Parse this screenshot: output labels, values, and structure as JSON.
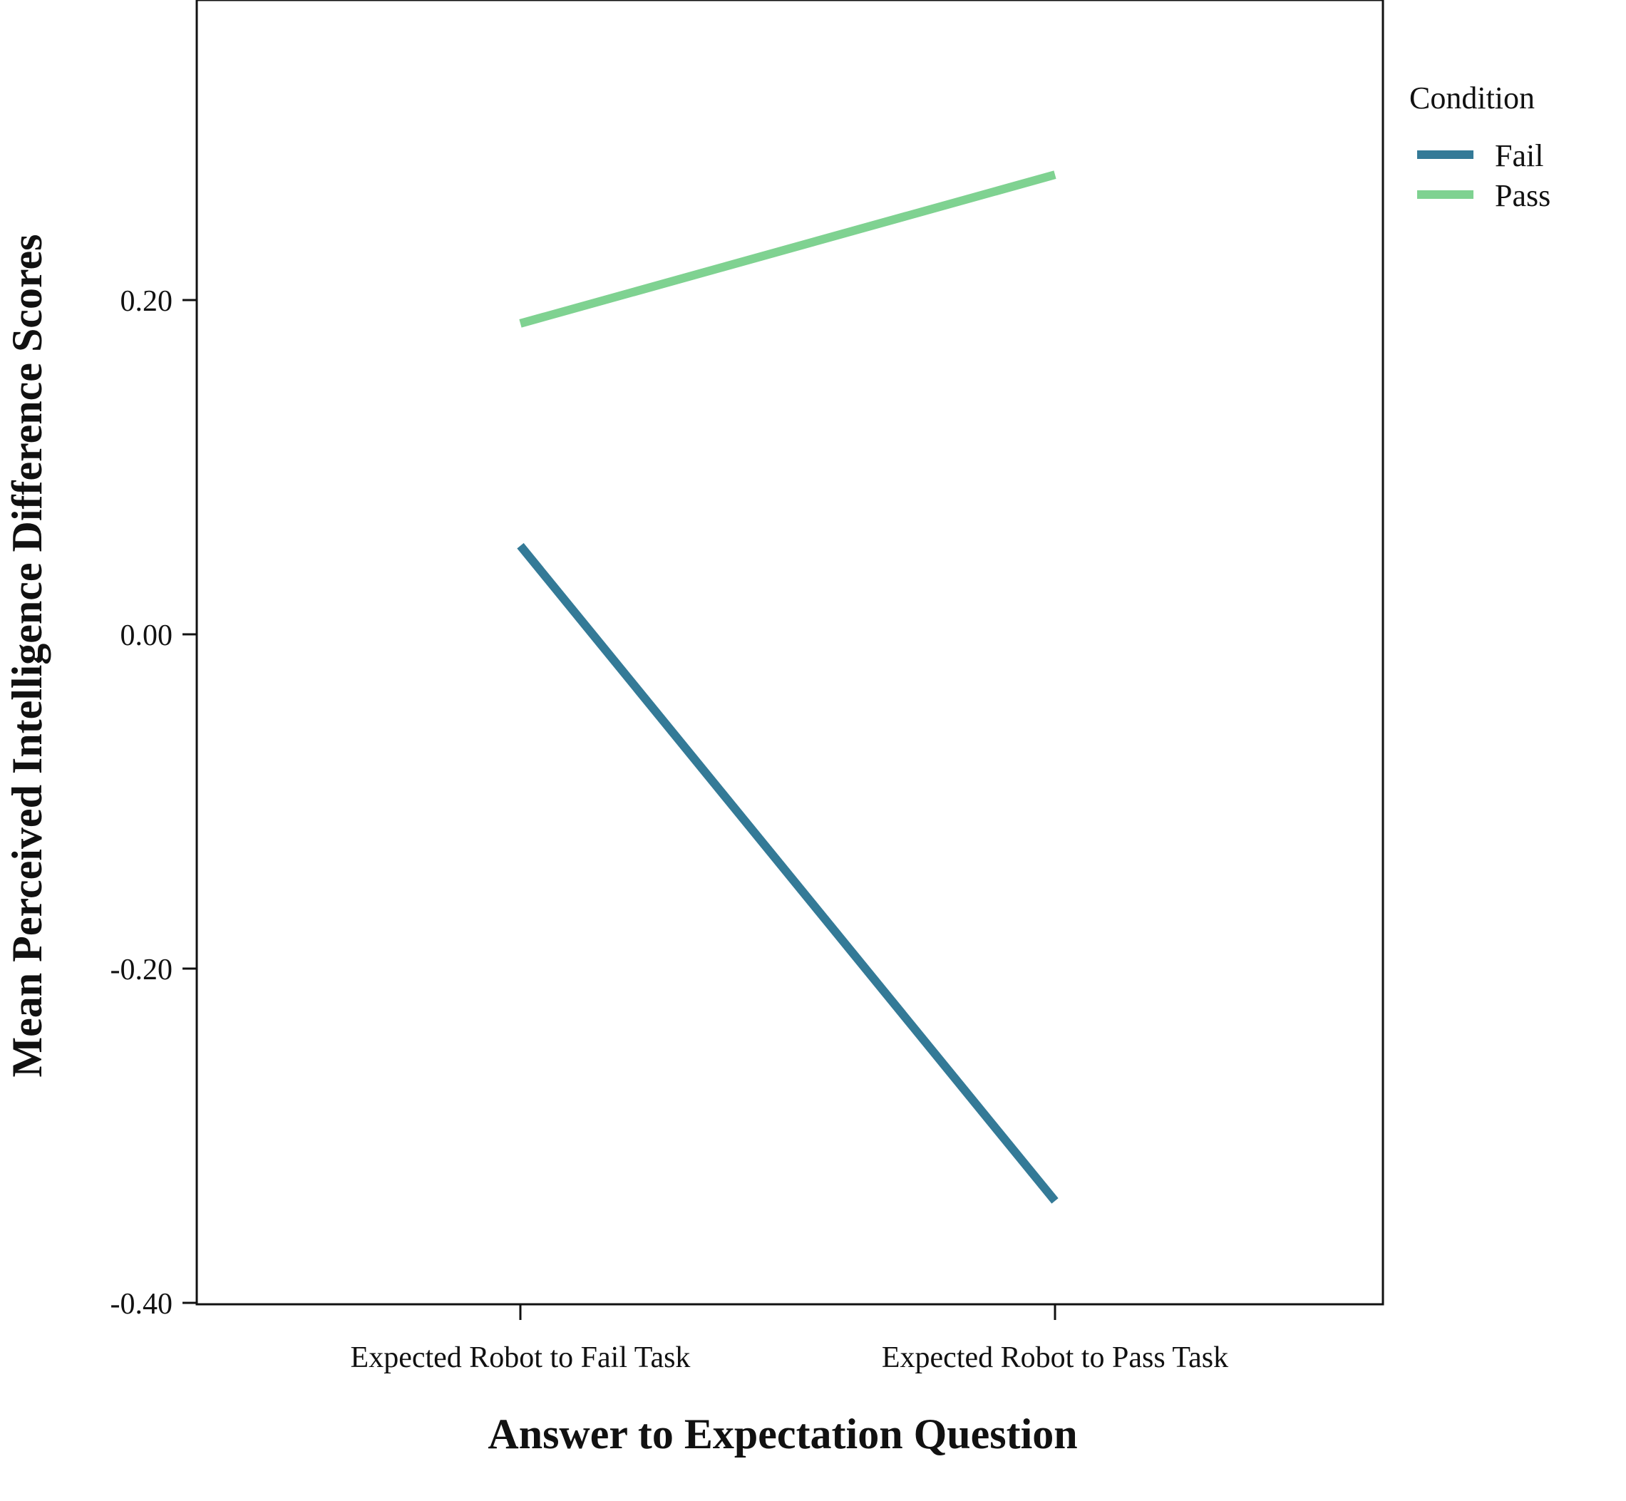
{
  "chart_data": {
    "type": "line",
    "xlabel": "Answer to Expectation Question",
    "ylabel": "Mean Perceived Intelligence Difference Scores",
    "categories": [
      "Expected Robot to Fail Task",
      "Expected Robot to Pass Task"
    ],
    "y_ticks": [
      "0.20",
      "0.00",
      "-0.20",
      "-0.40"
    ],
    "y_tick_values": [
      0.2,
      0.0,
      -0.2,
      -0.4
    ],
    "ylim": [
      -0.4,
      0.38
    ],
    "grid": false,
    "legend": {
      "title": "Condition",
      "placement": "top-right, outside plot"
    },
    "series": [
      {
        "name": "Fail",
        "color": "#347a97",
        "values": [
          0.053,
          -0.339
        ]
      },
      {
        "name": "Pass",
        "color": "#7fd291",
        "values": [
          0.186,
          0.275
        ]
      }
    ]
  }
}
